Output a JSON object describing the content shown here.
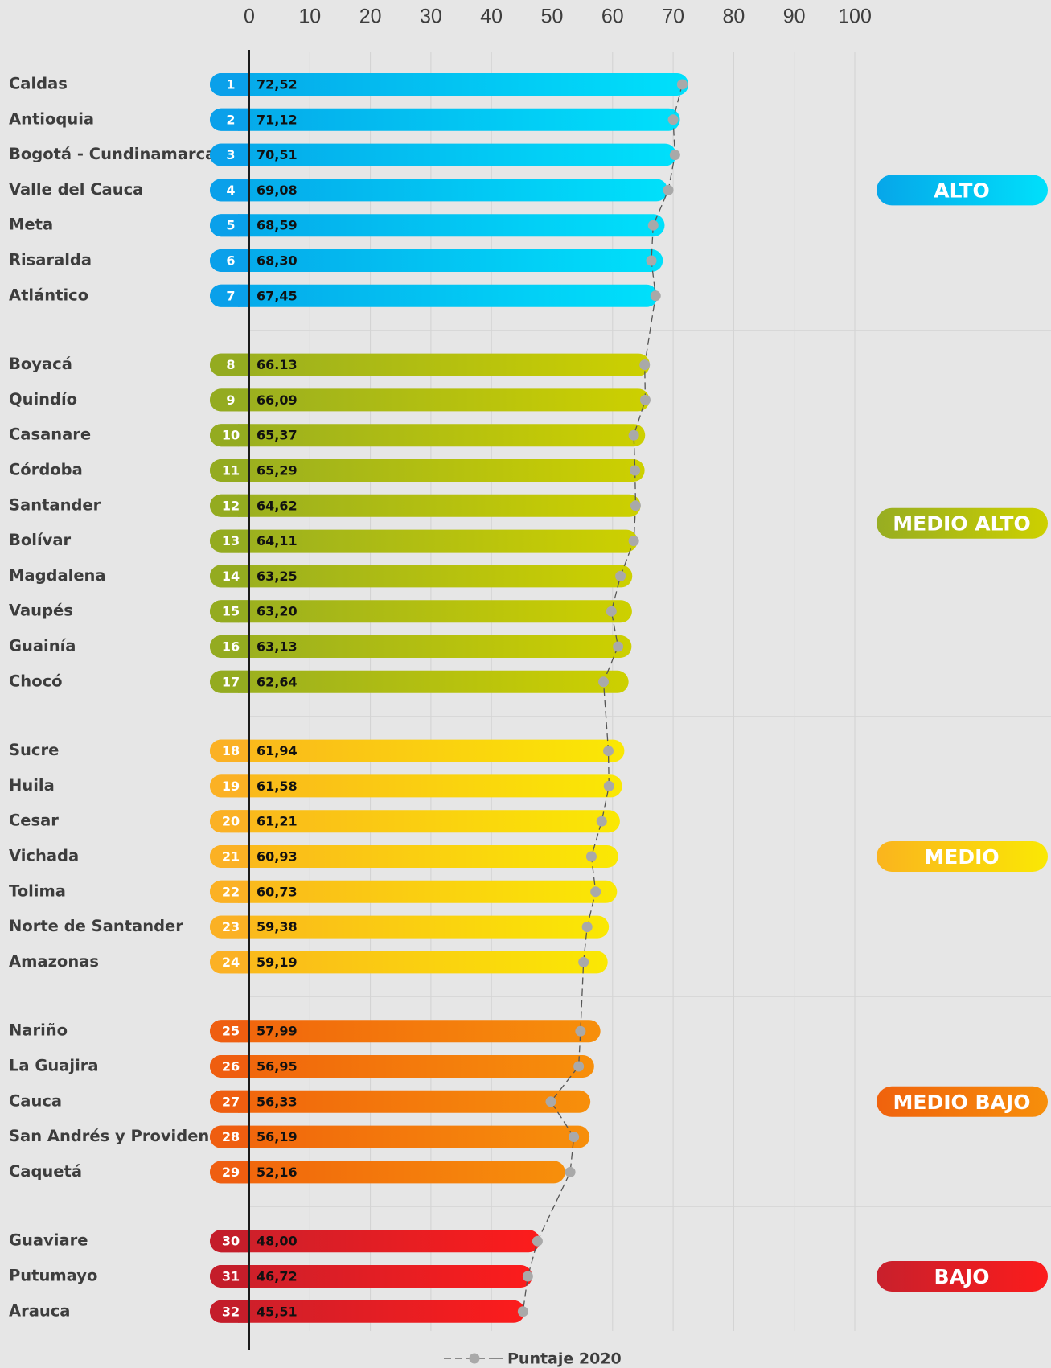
{
  "chart_data": {
    "type": "bar",
    "orientation": "horizontal",
    "xlim": [
      0,
      100
    ],
    "x_ticks": [
      "0",
      "10",
      "20",
      "30",
      "40",
      "50",
      "60",
      "70",
      "80",
      "90",
      "100"
    ],
    "grid": true,
    "legend": {
      "position": "bottom-center",
      "label": "Puntaje 2020"
    },
    "groups": [
      {
        "label": "ALTO",
        "colors": [
          "#06a6e9",
          "#00e0fb"
        ],
        "rank_color": "#0aa0ea",
        "items": [
          {
            "rank": "1",
            "name": "Caldas",
            "value": 72.52,
            "value_label": "72,52",
            "puntaje_2020": 71.5
          },
          {
            "rank": "2",
            "name": "Antioquia",
            "value": 71.12,
            "value_label": "71,12",
            "puntaje_2020": 70.0
          },
          {
            "rank": "3",
            "name": "Bogotá - Cundinamarca",
            "value": 70.51,
            "value_label": "70,51",
            "puntaje_2020": 70.3
          },
          {
            "rank": "4",
            "name": "Valle del Cauca",
            "value": 69.08,
            "value_label": "69,08",
            "puntaje_2020": 69.2
          },
          {
            "rank": "5",
            "name": "Meta",
            "value": 68.59,
            "value_label": "68,59",
            "puntaje_2020": 66.7
          },
          {
            "rank": "6",
            "name": "Risaralda",
            "value": 68.3,
            "value_label": "68,30",
            "puntaje_2020": 66.4
          },
          {
            "rank": "7",
            "name": "Atlántico",
            "value": 67.45,
            "value_label": "67,45",
            "puntaje_2020": 67.1
          }
        ]
      },
      {
        "label": "MEDIO ALTO",
        "colors": [
          "#97ad22",
          "#cdd000"
        ],
        "rank_color": "#94ab20",
        "items": [
          {
            "rank": "8",
            "name": "Boyacá",
            "value": 66.13,
            "value_label": "66.13",
            "puntaje_2020": 65.3
          },
          {
            "rank": "9",
            "name": "Quindío",
            "value": 66.09,
            "value_label": "66,09",
            "puntaje_2020": 65.4
          },
          {
            "rank": "10",
            "name": "Casanare",
            "value": 65.37,
            "value_label": "65,37",
            "puntaje_2020": 63.5
          },
          {
            "rank": "11",
            "name": "Córdoba",
            "value": 65.29,
            "value_label": "65,29",
            "puntaje_2020": 63.7
          },
          {
            "rank": "12",
            "name": "Santander",
            "value": 64.62,
            "value_label": "64,62",
            "puntaje_2020": 63.8
          },
          {
            "rank": "13",
            "name": "Bolívar",
            "value": 64.11,
            "value_label": "64,11",
            "puntaje_2020": 63.5
          },
          {
            "rank": "14",
            "name": "Magdalena",
            "value": 63.25,
            "value_label": "63,25",
            "puntaje_2020": 61.3
          },
          {
            "rank": "15",
            "name": "Vaupés",
            "value": 63.2,
            "value_label": "63,20",
            "puntaje_2020": 59.8
          },
          {
            "rank": "16",
            "name": "Guainía",
            "value": 63.13,
            "value_label": "63,13",
            "puntaje_2020": 60.9
          },
          {
            "rank": "17",
            "name": "Chocó",
            "value": 62.64,
            "value_label": "62,64",
            "puntaje_2020": 58.5
          }
        ]
      },
      {
        "label": "MEDIO",
        "colors": [
          "#fab41e",
          "#fae804"
        ],
        "rank_color": "#fbb124",
        "items": [
          {
            "rank": "18",
            "name": "Sucre",
            "value": 61.94,
            "value_label": "61,94",
            "puntaje_2020": 59.3
          },
          {
            "rank": "19",
            "name": "Huila",
            "value": 61.58,
            "value_label": "61,58",
            "puntaje_2020": 59.4
          },
          {
            "rank": "20",
            "name": "Cesar",
            "value": 61.21,
            "value_label": "61,21",
            "puntaje_2020": 58.2
          },
          {
            "rank": "21",
            "name": "Vichada",
            "value": 60.93,
            "value_label": "60,93",
            "puntaje_2020": 56.5
          },
          {
            "rank": "22",
            "name": "Tolima",
            "value": 60.73,
            "value_label": "60,73",
            "puntaje_2020": 57.2
          },
          {
            "rank": "23",
            "name": "Norte de Santander",
            "value": 59.38,
            "value_label": "59,38",
            "puntaje_2020": 55.8
          },
          {
            "rank": "24",
            "name": "Amazonas",
            "value": 59.19,
            "value_label": "59,19",
            "puntaje_2020": 55.2
          }
        ]
      },
      {
        "label": "MEDIO BAJO",
        "colors": [
          "#f0620d",
          "#f78f0b"
        ],
        "rank_color": "#ef5e10",
        "items": [
          {
            "rank": "25",
            "name": "Nariño",
            "value": 57.99,
            "value_label": "57,99",
            "puntaje_2020": 54.7
          },
          {
            "rank": "26",
            "name": "La Guajira",
            "value": 56.95,
            "value_label": "56,95",
            "puntaje_2020": 54.4
          },
          {
            "rank": "27",
            "name": "Cauca",
            "value": 56.33,
            "value_label": "56,33",
            "puntaje_2020": 49.8
          },
          {
            "rank": "28",
            "name": "San Andrés y Providencia",
            "value": 56.19,
            "value_label": "56,19",
            "puntaje_2020": 53.6
          },
          {
            "rank": "29",
            "name": "Caquetá",
            "value": 52.16,
            "value_label": "52,16",
            "puntaje_2020": 53.0
          }
        ]
      },
      {
        "label": "BAJO",
        "colors": [
          "#c8202c",
          "#fc1c1c"
        ],
        "rank_color": "#c41d2a",
        "items": [
          {
            "rank": "30",
            "name": "Guaviare",
            "value": 48.0,
            "value_label": "48,00",
            "puntaje_2020": 47.6
          },
          {
            "rank": "31",
            "name": "Putumayo",
            "value": 46.72,
            "value_label": "46,72",
            "puntaje_2020": 46.0
          },
          {
            "rank": "32",
            "name": "Arauca",
            "value": 45.51,
            "value_label": "45,51",
            "puntaje_2020": 45.2
          }
        ]
      }
    ]
  }
}
